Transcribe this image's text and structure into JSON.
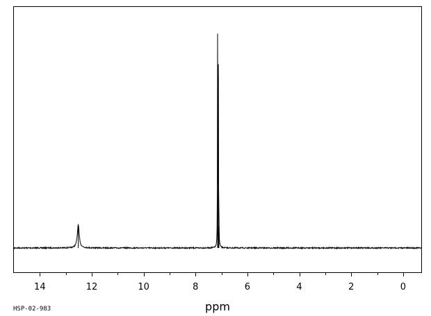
{
  "chart_data": {
    "type": "line",
    "title": "",
    "xlabel": "ppm",
    "ylabel": "",
    "xlim": [
      15.0,
      -0.7
    ],
    "x_reversed": true,
    "ylim": [
      0,
      100
    ],
    "grid": false,
    "legend": "none",
    "tick_labels": [
      "14",
      "12",
      "10",
      "8",
      "6",
      "4",
      "2",
      "0"
    ],
    "tick_values": [
      14,
      12,
      10,
      8,
      6,
      4,
      2,
      0
    ],
    "minor_tick_values": [
      13,
      11,
      9,
      7,
      5,
      3,
      1
    ],
    "baseline": 0,
    "peaks": [
      {
        "ppm": 12.52,
        "height": 10.5,
        "width": 0.09,
        "label": ""
      },
      {
        "ppm": 7.15,
        "height": 94,
        "width": 0.012,
        "label": ""
      },
      {
        "ppm": 7.12,
        "height": 78,
        "width": 0.012,
        "label": ""
      },
      {
        "ppm": 7.1,
        "height": 10,
        "width": 0.02,
        "label": ""
      }
    ],
    "line_color": "#000000"
  },
  "footer": {
    "sample_id": "HSP-02-983"
  }
}
